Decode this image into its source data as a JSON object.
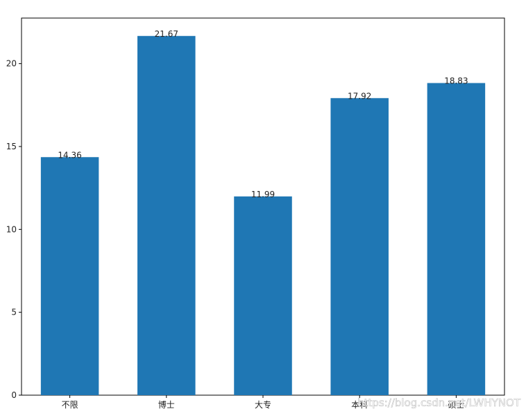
{
  "chart_data": {
    "type": "bar",
    "categories": [
      "不限",
      "博士",
      "大专",
      "本科",
      "硕士"
    ],
    "values": [
      14.36,
      21.67,
      11.99,
      17.92,
      18.83
    ],
    "color": "#1f77b4",
    "ylim": [
      0,
      22.75
    ],
    "yticks": [
      0,
      5,
      10,
      15,
      20
    ],
    "watermark": "https://blog.csdn.net/LWHYNOT"
  }
}
